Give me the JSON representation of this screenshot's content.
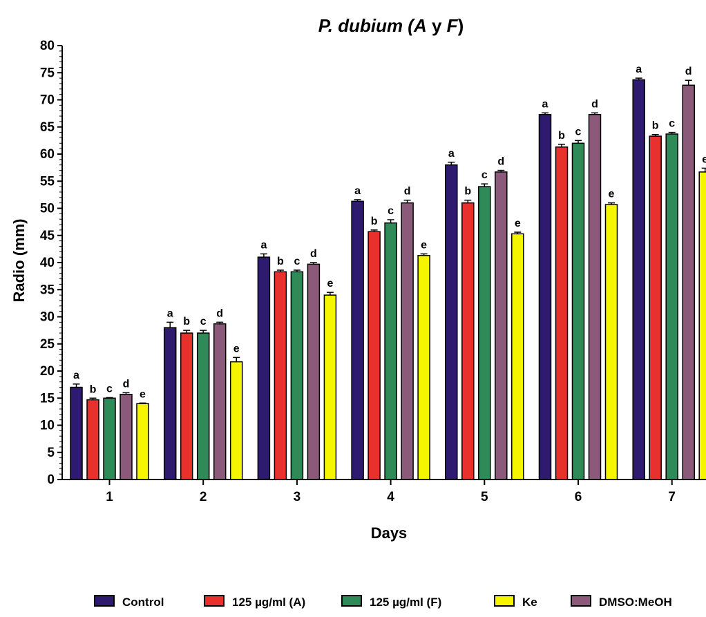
{
  "chart_data": {
    "type": "bar",
    "title_parts": [
      {
        "text": "P. dubium (",
        "italic": true
      },
      {
        "text": "A",
        "italic": true
      },
      {
        "text": " y ",
        "italic": false
      },
      {
        "text": "F",
        "italic": true
      },
      {
        "text": ")",
        "italic": false
      }
    ],
    "xlabel": "Days",
    "ylabel": "Radio (mm)",
    "ylim": [
      0,
      80
    ],
    "yticks": [
      0,
      5,
      10,
      15,
      20,
      25,
      30,
      35,
      40,
      45,
      50,
      55,
      60,
      65,
      70,
      75,
      80
    ],
    "categories": [
      "1",
      "2",
      "3",
      "4",
      "5",
      "6",
      "7"
    ],
    "series": [
      {
        "name": "Control",
        "color": "#2e1a6e",
        "letter": "a",
        "values": [
          17.0,
          28.0,
          41.0,
          51.3,
          58.0,
          67.3,
          73.7
        ],
        "errors": [
          0.6,
          1.0,
          0.6,
          0.3,
          0.5,
          0.3,
          0.3
        ]
      },
      {
        "name": "125 µg/ml (A)",
        "color": "#e8302c",
        "letter": "b",
        "values": [
          14.7,
          27.0,
          38.3,
          45.7,
          51.0,
          61.3,
          63.3
        ],
        "errors": [
          0.3,
          0.5,
          0.3,
          0.3,
          0.5,
          0.5,
          0.3
        ]
      },
      {
        "name": "125 µg/ml (F)",
        "color": "#2e8b57",
        "letter": "c",
        "values": [
          15.0,
          27.0,
          38.3,
          47.3,
          54.0,
          62.0,
          63.7
        ],
        "errors": [
          0.1,
          0.5,
          0.3,
          0.6,
          0.5,
          0.5,
          0.3
        ]
      },
      {
        "name": "DMSO:MeOH",
        "color": "#8b5a7a",
        "letter": "d",
        "values": [
          15.7,
          28.7,
          39.7,
          51.0,
          56.7,
          67.3,
          72.7
        ],
        "errors": [
          0.3,
          0.3,
          0.3,
          0.5,
          0.3,
          0.3,
          0.9
        ]
      },
      {
        "name": "Ke",
        "color": "#f5f500",
        "letter": "e",
        "values": [
          14.0,
          21.7,
          34.0,
          41.3,
          45.3,
          50.7,
          56.7
        ],
        "errors": [
          0.1,
          0.8,
          0.5,
          0.3,
          0.3,
          0.3,
          0.7
        ]
      }
    ],
    "legend": {
      "placement": "bottom",
      "order": [
        "Control",
        "125 µg/ml (A)",
        "125 µg/ml (F)",
        "Ke",
        "DMSO:MeOH"
      ]
    },
    "grid": false
  }
}
